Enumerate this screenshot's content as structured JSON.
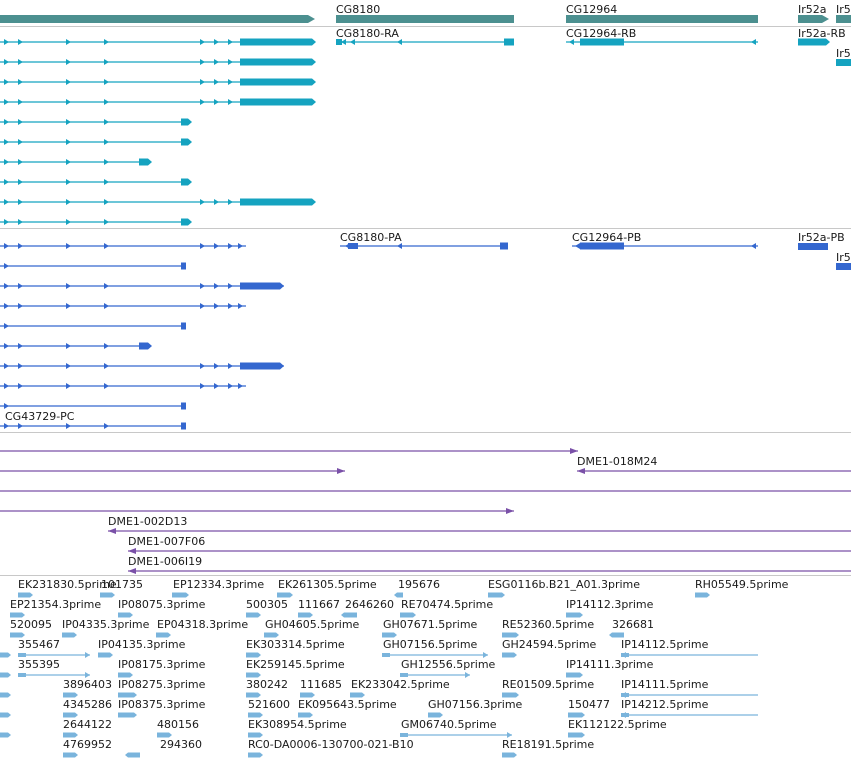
{
  "colors": {
    "gene": "#4c9090",
    "transcript_a": "#15a3c0",
    "transcript_b": "#3467cf",
    "clone": "#7a50a8",
    "est": "#7ab4dc",
    "separator": "#c8c8c8",
    "label": "#1a1a1a"
  },
  "genes": [
    "CG8180",
    "CG12964",
    "Ir52a",
    "Ir5"
  ],
  "transcripts_a": [
    "CG8180-RA",
    "CG12964-RB",
    "Ir52a-RB",
    "Ir5"
  ],
  "transcripts_b": [
    "CG8180-PA",
    "CG12964-PB",
    "Ir52a-PB",
    "Ir5",
    "CG43729-PC"
  ],
  "clones": [
    "DME1-018M24",
    "DME1-002D13",
    "DME1-007F06",
    "DME1-006I19"
  ],
  "ests": [
    "EK231830.5prime",
    "101735",
    "EP12334.3prime",
    "EK261305.5prime",
    "195676",
    "ESG0116b.B21_A01.3prime",
    "RH05549.5prime",
    "EP21354.3prime",
    "IP08075.3prime",
    "500305",
    "111667",
    "2646260",
    "RE70474.5prime",
    "IP14112.3prime",
    "520095",
    "IP04335.3prime",
    "EP04318.3prime",
    "GH04605.5prime",
    "GH07671.5prime",
    "RE52360.5prime",
    "326681",
    "355467",
    "IP04135.3prime",
    "EK303314.5prime",
    "GH07156.5prime",
    "GH24594.5prime",
    "IP14112.5prime",
    "355395",
    "IP08175.3prime",
    "EK259145.5prime",
    "GH12556.5prime",
    "IP14111.3prime",
    "3896403",
    "IP08275.3prime",
    "380242",
    "111685",
    "EK233042.5prime",
    "RE01509.5prime",
    "IP14111.5prime",
    "4345286",
    "IP08375.3prime",
    "521600",
    "EK095643.5prime",
    "GH07156.3prime",
    "150477",
    "IP14212.5prime",
    "2644122",
    "480156",
    "EK308954.5prime",
    "GM06740.5prime",
    "EK112122.5prime",
    "4769952",
    "294360",
    "RC0-DA0006-130700-021-B10",
    "RE18191.5prime"
  ]
}
